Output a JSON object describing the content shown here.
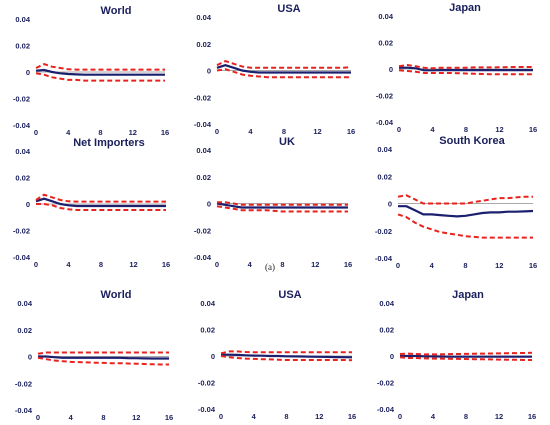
{
  "colors": {
    "median": "#1a1f6e",
    "band": "#e8231e",
    "zero": "#aaaaaa",
    "axis_text": "#1a1f5c"
  },
  "subfigure_label": "(a)",
  "chart_data": [
    {
      "type": "line",
      "title": "World",
      "x": [
        0,
        1,
        2,
        3,
        4,
        5,
        6,
        7,
        8,
        9,
        10,
        11,
        12,
        13,
        14,
        15,
        16
      ],
      "xticks": [
        0,
        4,
        8,
        12,
        16
      ],
      "ylim": [
        -0.04,
        0.04
      ],
      "yticks": [
        "0.04",
        "0.02",
        "0",
        "-0.02",
        "-0.04"
      ],
      "series": [
        {
          "role": "median",
          "values": [
            0.001,
            0.0015,
            0,
            -0.001,
            -0.0015,
            -0.0018,
            -0.002,
            -0.002,
            -0.002,
            -0.002,
            -0.002,
            -0.002,
            -0.002,
            -0.002,
            -0.002,
            -0.002,
            -0.002
          ]
        },
        {
          "role": "upper",
          "values": [
            0.003,
            0.006,
            0.004,
            0.003,
            0.002,
            0.0018,
            0.0018,
            0.0018,
            0.0018,
            0.0018,
            0.0018,
            0.0018,
            0.0018,
            0.0018,
            0.0018,
            0.0018,
            0.0018
          ]
        },
        {
          "role": "lower",
          "values": [
            -0.001,
            -0.002,
            -0.004,
            -0.005,
            -0.006,
            -0.006,
            -0.0065,
            -0.0065,
            -0.0065,
            -0.0065,
            -0.0065,
            -0.0065,
            -0.0065,
            -0.0065,
            -0.0065,
            -0.0065,
            -0.0065
          ]
        }
      ]
    },
    {
      "type": "line",
      "title": "USA",
      "x": [
        0,
        1,
        2,
        3,
        4,
        5,
        6,
        7,
        8,
        9,
        10,
        11,
        12,
        13,
        14,
        15,
        16
      ],
      "xticks": [
        0,
        4,
        8,
        12,
        16
      ],
      "ylim": [
        -0.04,
        0.04
      ],
      "yticks": [
        "0.04",
        "0.02",
        "0",
        "-0.02",
        "-0.04"
      ],
      "series": [
        {
          "role": "median",
          "values": [
            0.002,
            0.004,
            0.002,
            0,
            -0.001,
            -0.0015,
            -0.0015,
            -0.0015,
            -0.0015,
            -0.0015,
            -0.0015,
            -0.0015,
            -0.0015,
            -0.0015,
            -0.0015,
            -0.0015,
            -0.0015
          ]
        },
        {
          "role": "upper",
          "values": [
            0.004,
            0.007,
            0.005,
            0.003,
            0.002,
            0.002,
            0.002,
            0.002,
            0.002,
            0.002,
            0.002,
            0.002,
            0.002,
            0.002,
            0.002,
            0.002,
            0.0025
          ]
        },
        {
          "role": "lower",
          "values": [
            0,
            0.001,
            -0.001,
            -0.003,
            -0.004,
            -0.0045,
            -0.005,
            -0.005,
            -0.005,
            -0.005,
            -0.005,
            -0.005,
            -0.005,
            -0.005,
            -0.005,
            -0.005,
            -0.005
          ]
        }
      ]
    },
    {
      "type": "line",
      "title": "Japan",
      "x": [
        0,
        1,
        2,
        3,
        4,
        5,
        6,
        7,
        8,
        9,
        10,
        11,
        12,
        13,
        14,
        15,
        16
      ],
      "xticks": [
        0,
        4,
        8,
        12,
        16
      ],
      "ylim": [
        -0.04,
        0.04
      ],
      "yticks": [
        "0.04",
        "0.02",
        "0",
        "-0.02",
        "-0.04"
      ],
      "series": [
        {
          "role": "median",
          "values": [
            0.001,
            0.001,
            0.0005,
            -0.001,
            -0.001,
            -0.0008,
            -0.0008,
            -0.0008,
            -0.0008,
            -0.0008,
            -0.0008,
            -0.0008,
            -0.0008,
            -0.0008,
            -0.0008,
            -0.0008,
            -0.0008
          ]
        },
        {
          "role": "upper",
          "values": [
            0.002,
            0.003,
            0.002,
            0.001,
            0.0005,
            0.001,
            0.001,
            0.001,
            0.001,
            0.0012,
            0.0012,
            0.0012,
            0.0013,
            0.0014,
            0.0015,
            0.0015,
            0.0015
          ]
        },
        {
          "role": "lower",
          "values": [
            -0.001,
            -0.0015,
            -0.002,
            -0.003,
            -0.003,
            -0.003,
            -0.003,
            -0.0032,
            -0.0034,
            -0.0036,
            -0.0038,
            -0.004,
            -0.004,
            -0.004,
            -0.004,
            -0.004,
            -0.004
          ]
        }
      ]
    },
    {
      "type": "line",
      "title": "Net Importers",
      "x": [
        0,
        1,
        2,
        3,
        4,
        5,
        6,
        7,
        8,
        9,
        10,
        11,
        12,
        13,
        14,
        15,
        16
      ],
      "xticks": [
        0,
        4,
        8,
        12,
        16
      ],
      "ylim": [
        -0.04,
        0.04
      ],
      "yticks": [
        "0.04",
        "0.02",
        "0",
        "-0.02",
        "-0.04"
      ],
      "series": [
        {
          "role": "median",
          "values": [
            0.002,
            0.004,
            0.002,
            0,
            -0.001,
            -0.0015,
            -0.0015,
            -0.0015,
            -0.0015,
            -0.0015,
            -0.0015,
            -0.0015,
            -0.0015,
            -0.0015,
            -0.0015,
            -0.0015,
            -0.0015
          ]
        },
        {
          "role": "upper",
          "values": [
            0.003,
            0.007,
            0.005,
            0.003,
            0.002,
            0.0018,
            0.0018,
            0.0018,
            0.0018,
            0.0018,
            0.0018,
            0.0018,
            0.0018,
            0.0018,
            0.0018,
            0.0018,
            0.0018
          ]
        },
        {
          "role": "lower",
          "values": [
            0,
            0,
            -0.001,
            -0.003,
            -0.004,
            -0.0045,
            -0.0045,
            -0.0045,
            -0.0045,
            -0.0045,
            -0.0045,
            -0.0045,
            -0.0045,
            -0.0045,
            -0.0045,
            -0.0045,
            -0.0045
          ]
        }
      ]
    },
    {
      "type": "line",
      "title": "UK",
      "x": [
        0,
        1,
        2,
        3,
        4,
        5,
        6,
        7,
        8,
        9,
        10,
        11,
        12,
        13,
        14,
        15,
        16
      ],
      "xticks": [
        0,
        4,
        8,
        12,
        16
      ],
      "ylim": [
        -0.04,
        0.04
      ],
      "yticks": [
        "0.04",
        "0.02",
        "0",
        "-0.02",
        "-0.04"
      ],
      "series": [
        {
          "role": "median",
          "values": [
            0,
            -0.001,
            -0.002,
            -0.003,
            -0.003,
            -0.003,
            -0.003,
            -0.003,
            -0.003,
            -0.003,
            -0.003,
            -0.003,
            -0.003,
            -0.003,
            -0.003,
            -0.003,
            -0.003
          ]
        },
        {
          "role": "upper",
          "values": [
            0.001,
            0.001,
            0,
            -0.001,
            -0.001,
            -0.001,
            -0.001,
            -0.001,
            -0.001,
            -0.001,
            -0.001,
            -0.001,
            -0.001,
            -0.001,
            -0.001,
            -0.001,
            -0.001
          ]
        },
        {
          "role": "lower",
          "values": [
            -0.002,
            -0.003,
            -0.004,
            -0.005,
            -0.005,
            -0.005,
            -0.005,
            -0.0055,
            -0.006,
            -0.006,
            -0.006,
            -0.006,
            -0.006,
            -0.006,
            -0.006,
            -0.006,
            -0.006
          ]
        }
      ]
    },
    {
      "type": "line",
      "title": "South Korea",
      "x": [
        0,
        1,
        2,
        3,
        4,
        5,
        6,
        7,
        8,
        9,
        10,
        11,
        12,
        13,
        14,
        15,
        16
      ],
      "xticks": [
        0,
        4,
        8,
        12,
        16
      ],
      "ylim": [
        -0.04,
        0.04
      ],
      "yticks": [
        "0.04",
        "0.02",
        "0",
        "-0.02",
        "-0.04"
      ],
      "series": [
        {
          "role": "median",
          "values": [
            -0.002,
            -0.002,
            -0.005,
            -0.008,
            -0.008,
            -0.0085,
            -0.009,
            -0.0095,
            -0.009,
            -0.008,
            -0.007,
            -0.0065,
            -0.0065,
            -0.006,
            -0.006,
            -0.0058,
            -0.0055
          ]
        },
        {
          "role": "upper",
          "values": [
            0.005,
            0.006,
            0.003,
            0,
            0,
            0,
            0,
            0,
            0,
            0.001,
            0.002,
            0.003,
            0.004,
            0.004,
            0.0045,
            0.005,
            0.005
          ]
        },
        {
          "role": "lower",
          "values": [
            -0.008,
            -0.01,
            -0.014,
            -0.017,
            -0.019,
            -0.021,
            -0.022,
            -0.023,
            -0.024,
            -0.0245,
            -0.025,
            -0.025,
            -0.025,
            -0.025,
            -0.025,
            -0.025,
            -0.025
          ]
        }
      ]
    },
    {
      "type": "line",
      "title": "World",
      "x": [
        0,
        1,
        2,
        3,
        4,
        5,
        6,
        7,
        8,
        9,
        10,
        11,
        12,
        13,
        14,
        15,
        16
      ],
      "xticks": [
        0,
        4,
        8,
        12,
        16
      ],
      "ylim": [
        -0.04,
        0.04
      ],
      "yticks": [
        "0.04",
        "0.02",
        "0",
        "-0.02",
        "-0.04"
      ],
      "series": [
        {
          "role": "median",
          "values": [
            0,
            0,
            -0.0005,
            -0.001,
            -0.001,
            -0.001,
            -0.001,
            -0.001,
            -0.001,
            -0.001,
            -0.001,
            -0.0012,
            -0.0013,
            -0.0014,
            -0.0015,
            -0.0015,
            -0.0015
          ]
        },
        {
          "role": "upper",
          "values": [
            0.002,
            0.003,
            0.003,
            0.003,
            0.003,
            0.003,
            0.003,
            0.003,
            0.003,
            0.003,
            0.003,
            0.003,
            0.003,
            0.003,
            0.003,
            0.003,
            0.003
          ]
        },
        {
          "role": "lower",
          "values": [
            -0.001,
            -0.002,
            -0.003,
            -0.0035,
            -0.004,
            -0.0042,
            -0.0044,
            -0.0046,
            -0.0048,
            -0.005,
            -0.005,
            -0.0052,
            -0.0054,
            -0.0056,
            -0.0058,
            -0.006,
            -0.006
          ]
        }
      ]
    },
    {
      "type": "line",
      "title": "USA",
      "x": [
        0,
        1,
        2,
        3,
        4,
        5,
        6,
        7,
        8,
        9,
        10,
        11,
        12,
        13,
        14,
        15,
        16
      ],
      "xticks": [
        0,
        4,
        8,
        12,
        16
      ],
      "ylim": [
        -0.04,
        0.04
      ],
      "yticks": [
        "0.04",
        "0.02",
        "0",
        "-0.02",
        "-0.04"
      ],
      "series": [
        {
          "role": "median",
          "values": [
            0.001,
            0.001,
            0.0008,
            0.0005,
            0.0003,
            0.0002,
            0,
            0,
            -0.0002,
            -0.0003,
            -0.0004,
            -0.0005,
            -0.0006,
            -0.0007,
            -0.0008,
            -0.0009,
            -0.001
          ]
        },
        {
          "role": "upper",
          "values": [
            0.002,
            0.0035,
            0.0035,
            0.003,
            0.0028,
            0.0028,
            0.0028,
            0.0028,
            0.0028,
            0.0028,
            0.0028,
            0.0028,
            0.0028,
            0.0028,
            0.0028,
            0.0028,
            0.0028
          ]
        },
        {
          "role": "lower",
          "values": [
            0,
            -0.001,
            -0.0015,
            -0.002,
            -0.0022,
            -0.0024,
            -0.0026,
            -0.0028,
            -0.003,
            -0.003,
            -0.003,
            -0.003,
            -0.003,
            -0.003,
            -0.003,
            -0.003,
            -0.0032
          ]
        }
      ]
    },
    {
      "type": "line",
      "title": "Japan",
      "x": [
        0,
        1,
        2,
        3,
        4,
        5,
        6,
        7,
        8,
        9,
        10,
        11,
        12,
        13,
        14,
        15,
        16
      ],
      "xticks": [
        0,
        4,
        8,
        12,
        16
      ],
      "ylim": [
        -0.04,
        0.04
      ],
      "yticks": [
        "0.04",
        "0.02",
        "0",
        "-0.02",
        "-0.04"
      ],
      "series": [
        {
          "role": "median",
          "values": [
            0,
            0,
            0,
            -0.0002,
            -0.0003,
            -0.0004,
            -0.0005,
            -0.0005,
            -0.0005,
            -0.0005,
            -0.0005,
            -0.0005,
            -0.0005,
            -0.0005,
            -0.0005,
            -0.0005,
            -0.0005
          ]
        },
        {
          "role": "upper",
          "values": [
            0.0015,
            0.0018,
            0.0015,
            0.0012,
            0.0012,
            0.0013,
            0.0014,
            0.0015,
            0.0016,
            0.0017,
            0.0018,
            0.0019,
            0.002,
            0.0021,
            0.0022,
            0.0023,
            0.0024
          ]
        },
        {
          "role": "lower",
          "values": [
            -0.001,
            -0.0015,
            -0.0015,
            -0.0018,
            -0.002,
            -0.002,
            -0.0021,
            -0.0022,
            -0.0023,
            -0.0024,
            -0.0025,
            -0.0026,
            -0.0027,
            -0.0028,
            -0.0029,
            -0.003,
            -0.003
          ]
        }
      ]
    }
  ]
}
